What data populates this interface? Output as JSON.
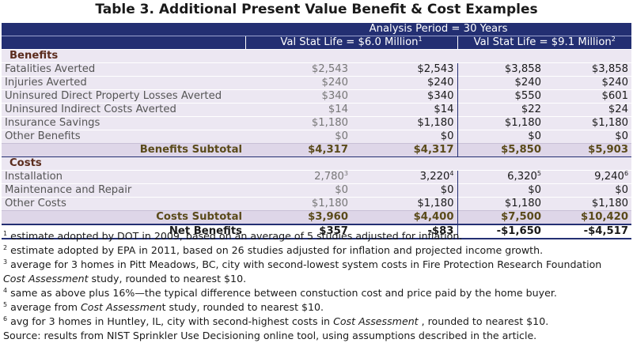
{
  "title": "Table 3.  Additional Present Value Benefit & Cost Examples",
  "header": {
    "analysis_period": "Analysis Period = 30 Years",
    "val_stat_life_1": "Val Stat Life = $6.0 Million",
    "val_stat_life_1_sup": "1",
    "val_stat_life_2": "Val Stat Life = $9.1 Million",
    "val_stat_life_2_sup": "2"
  },
  "benefits": {
    "heading": "Benefits",
    "rows": [
      {
        "label": "Fatalities Averted",
        "v": [
          "$2,543",
          "$2,543",
          "$3,858",
          "$3,858"
        ]
      },
      {
        "label": "Injuries Averted",
        "v": [
          "$240",
          "$240",
          "$240",
          "$240"
        ]
      },
      {
        "label": "Uninsured Direct Property Losses Averted",
        "v": [
          "$340",
          "$340",
          "$550",
          "$601"
        ]
      },
      {
        "label": "Uninsured Indirect Costs Averted",
        "v": [
          "$14",
          "$14",
          "$22",
          "$24"
        ]
      },
      {
        "label": "Insurance Savings",
        "v": [
          "$1,180",
          "$1,180",
          "$1,180",
          "$1,180"
        ]
      },
      {
        "label": "Other Benefits",
        "v": [
          "$0",
          "$0",
          "$0",
          "$0"
        ]
      }
    ],
    "subtotal": {
      "label": "Benefits Subtotal",
      "v": [
        "$4,317",
        "$4,317",
        "$5,850",
        "$5,903"
      ]
    }
  },
  "costs": {
    "heading": "Costs",
    "rows": [
      {
        "label": "Installation",
        "v": [
          "2,780",
          "3,220",
          "6,320",
          "9,240"
        ],
        "sup": [
          "3",
          "4",
          "5",
          "6"
        ]
      },
      {
        "label": "Maintenance and Repair",
        "v": [
          "$0",
          "$0",
          "$0",
          "$0"
        ]
      },
      {
        "label": "Other Costs",
        "v": [
          "$1,180",
          "$1,180",
          "$1,180",
          "$1,180"
        ]
      }
    ],
    "subtotal": {
      "label": "Costs Subtotal",
      "v": [
        "$3,960",
        "$4,400",
        "$7,500",
        "$10,420"
      ]
    }
  },
  "net": {
    "label": "Net Benefits",
    "v": [
      "$357",
      "-$83",
      "-$1,650",
      "-$4,517"
    ]
  },
  "footnotes": {
    "n1_sup": "1",
    "n1": " estimate adopted by DOT in 2009, based on an average of 5 studies adjusted for inflation.",
    "n2_sup": "2",
    "n2": " estimate adopted by EPA in 2011, based on 26 studies adjusted for inflation and projected income growth.",
    "n3_sup": "3",
    "n3a": " average for 3 homes in Pitt Meadows, BC, city with second-lowest system costs in Fire Protection Research Foundation",
    "n3b_italic": "Cost Assessment",
    "n3c": "  study, rounded to nearest $10.",
    "n4_sup": "4",
    "n4": " same as above plus 16%—the typical difference between constuction cost and price paid by the home buyer.",
    "n5_sup": "5",
    "n5a": " average from ",
    "n5b_italic": "Cost Assessmen",
    "n5c": "t study, rounded to nearest $10.",
    "n6_sup": "6",
    "n6a": " avg for 3 homes in Huntley, IL, city with second-highest costs in ",
    "n6b_italic": "Cost Assessment",
    "n6c": " , rounded to nearest $10.",
    "source": "Source: results from NIST Sprinkler Use Decisioning online tool, using assumptions described in the article."
  }
}
